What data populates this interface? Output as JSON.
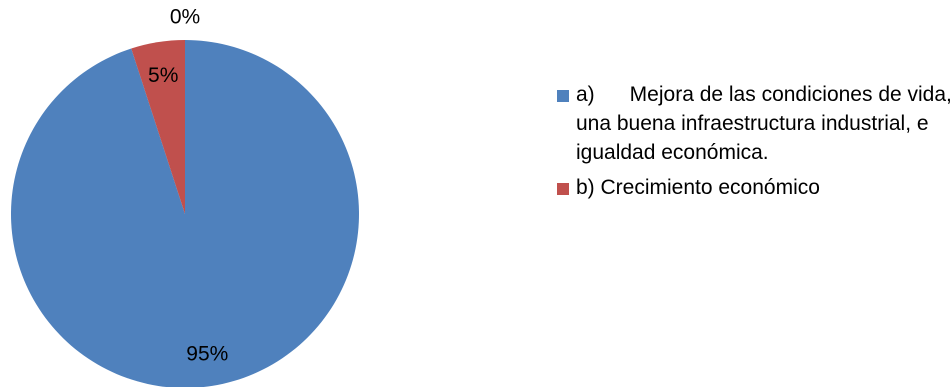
{
  "chart_data": {
    "type": "pie",
    "title": "",
    "series": [
      {
        "name": "",
        "labels": [
          "a)\tMejora de las condiciones de vida, una buena infraestructura industrial, e igualdad económica.",
          "b) Crecimiento económico",
          ""
        ],
        "values": [
          95,
          5,
          0
        ],
        "data_labels": [
          "95%",
          "5%",
          "0%"
        ],
        "colors": [
          "#4F81BD",
          "#C0504D",
          "#9BBB59"
        ]
      }
    ],
    "legend": {
      "position": "right",
      "entries": [
        {
          "text": "a)      Mejora de las condiciones de vida, una buena infraestructura industrial, e igualdad económica.",
          "color": "#4F81BD"
        },
        {
          "text": "b) Crecimiento económico",
          "color": "#C0504D"
        }
      ]
    }
  }
}
